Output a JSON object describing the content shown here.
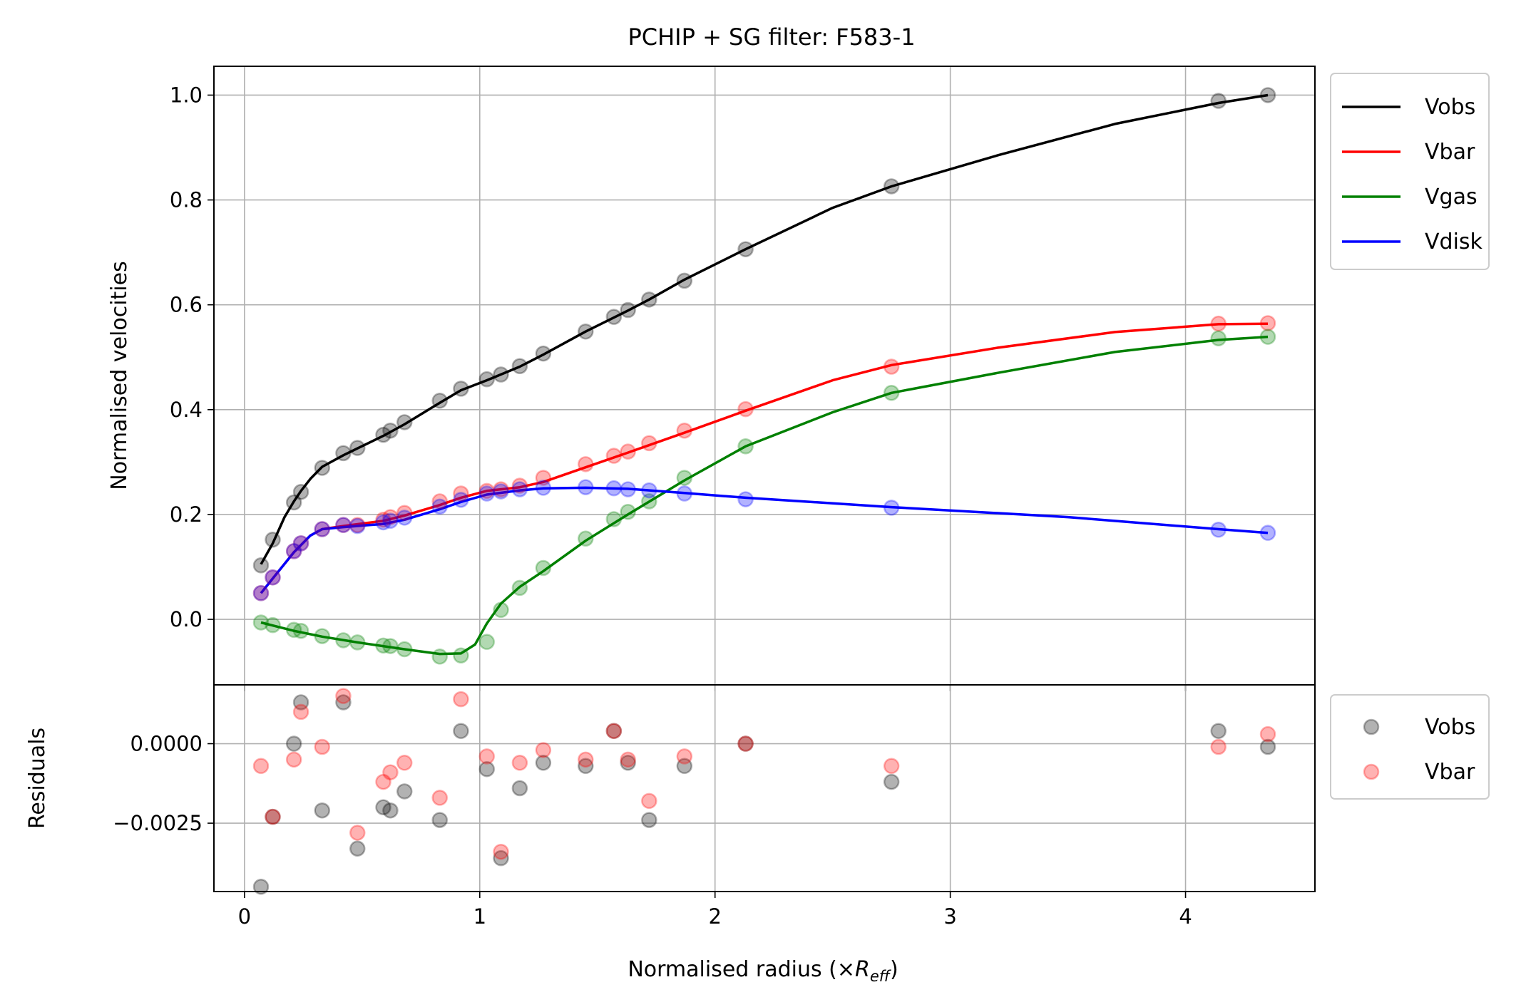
{
  "chart_data": [
    {
      "type": "line",
      "title": "PCHIP + SG filter: F583-1",
      "ylabel": "Normalised velocities",
      "xlim": [
        -0.13,
        4.55
      ],
      "ylim": [
        -0.125,
        1.055
      ],
      "xticks": [
        0,
        1,
        2,
        3,
        4
      ],
      "yticks": [
        0.0,
        0.2,
        0.4,
        0.6,
        0.8,
        1.0
      ],
      "ytick_labels": [
        "0.0",
        "0.2",
        "0.4",
        "0.6",
        "0.8",
        "1.0"
      ],
      "grid": true,
      "legend_position": "outside upper right",
      "x": [
        0.07,
        0.12,
        0.21,
        0.24,
        0.33,
        0.42,
        0.48,
        0.59,
        0.62,
        0.68,
        0.83,
        0.92,
        1.03,
        1.09,
        1.17,
        1.27,
        1.45,
        1.57,
        1.63,
        1.72,
        1.87,
        2.13,
        2.75,
        4.14,
        4.35
      ],
      "series": [
        {
          "name": "Vobs",
          "color": "#000000",
          "points": [
            0.103,
            0.152,
            0.223,
            0.243,
            0.289,
            0.317,
            0.327,
            0.352,
            0.36,
            0.376,
            0.417,
            0.44,
            0.458,
            0.467,
            0.483,
            0.507,
            0.549,
            0.577,
            0.59,
            0.61,
            0.646,
            0.706,
            0.826,
            0.989,
            1.0
          ],
          "curve_x": [
            0.07,
            0.12,
            0.17,
            0.21,
            0.24,
            0.28,
            0.33,
            0.42,
            0.48,
            0.59,
            0.68,
            0.83,
            0.92,
            1.03,
            1.17,
            1.27,
            1.45,
            1.63,
            1.72,
            1.87,
            2.13,
            2.5,
            2.75,
            3.2,
            3.7,
            4.14,
            4.35
          ],
          "curve_y": [
            0.105,
            0.145,
            0.195,
            0.225,
            0.245,
            0.268,
            0.291,
            0.313,
            0.326,
            0.35,
            0.372,
            0.413,
            0.437,
            0.456,
            0.482,
            0.505,
            0.549,
            0.589,
            0.61,
            0.648,
            0.706,
            0.785,
            0.826,
            0.885,
            0.945,
            0.985,
            1.0
          ]
        },
        {
          "name": "Vbar",
          "color": "#ff0000",
          "points": [
            0.05,
            0.08,
            0.13,
            0.145,
            0.172,
            0.18,
            0.18,
            0.19,
            0.195,
            0.203,
            0.225,
            0.24,
            0.245,
            0.248,
            0.255,
            0.27,
            0.296,
            0.312,
            0.32,
            0.336,
            0.36,
            0.401,
            0.482,
            0.564,
            0.565
          ],
          "curve_x": [
            0.07,
            0.12,
            0.21,
            0.28,
            0.33,
            0.42,
            0.59,
            0.68,
            0.83,
            0.92,
            1.03,
            1.17,
            1.27,
            1.45,
            1.63,
            1.87,
            2.13,
            2.5,
            2.75,
            3.2,
            3.7,
            4.14,
            4.35
          ],
          "curve_y": [
            0.05,
            0.078,
            0.128,
            0.16,
            0.172,
            0.178,
            0.188,
            0.198,
            0.218,
            0.232,
            0.245,
            0.252,
            0.262,
            0.29,
            0.318,
            0.356,
            0.398,
            0.456,
            0.485,
            0.518,
            0.548,
            0.563,
            0.564
          ]
        },
        {
          "name": "Vgas",
          "color": "#008000",
          "points": [
            -0.006,
            -0.011,
            -0.02,
            -0.022,
            -0.032,
            -0.04,
            -0.044,
            -0.05,
            -0.051,
            -0.057,
            -0.071,
            -0.069,
            -0.043,
            0.018,
            0.06,
            0.098,
            0.154,
            0.191,
            0.205,
            0.225,
            0.27,
            0.33,
            0.432,
            0.536,
            0.539
          ],
          "curve_x": [
            0.07,
            0.21,
            0.33,
            0.48,
            0.68,
            0.83,
            0.92,
            0.98,
            1.03,
            1.09,
            1.17,
            1.27,
            1.45,
            1.63,
            1.87,
            2.13,
            2.5,
            2.75,
            3.2,
            3.7,
            4.14,
            4.35
          ],
          "curve_y": [
            -0.006,
            -0.022,
            -0.033,
            -0.044,
            -0.057,
            -0.066,
            -0.065,
            -0.048,
            -0.008,
            0.03,
            0.062,
            0.092,
            0.15,
            0.2,
            0.265,
            0.33,
            0.395,
            0.432,
            0.47,
            0.51,
            0.533,
            0.539
          ]
        },
        {
          "name": "Vdisk",
          "color": "#0000ff",
          "points": [
            0.05,
            0.08,
            0.13,
            0.145,
            0.172,
            0.18,
            0.178,
            0.185,
            0.188,
            0.194,
            0.215,
            0.228,
            0.24,
            0.244,
            0.248,
            0.251,
            0.252,
            0.25,
            0.248,
            0.246,
            0.24,
            0.229,
            0.213,
            0.171,
            0.165
          ],
          "curve_x": [
            0.07,
            0.12,
            0.21,
            0.28,
            0.33,
            0.42,
            0.59,
            0.68,
            0.83,
            0.92,
            1.03,
            1.17,
            1.27,
            1.45,
            1.63,
            1.87,
            2.13,
            2.75,
            3.5,
            4.14,
            4.35
          ],
          "curve_y": [
            0.05,
            0.078,
            0.128,
            0.16,
            0.172,
            0.176,
            0.182,
            0.19,
            0.21,
            0.224,
            0.238,
            0.246,
            0.25,
            0.251,
            0.249,
            0.241,
            0.232,
            0.214,
            0.195,
            0.172,
            0.165
          ]
        }
      ]
    },
    {
      "type": "scatter",
      "xlabel_text": "Normalised radius (×",
      "xlabel_sym": "R",
      "xlabel_sub": "eff",
      "xlabel_close": ")",
      "ylabel": "Residuals",
      "xlim": [
        -0.13,
        4.55
      ],
      "ylim": [
        -0.00465,
        0.00185
      ],
      "xticks": [
        0,
        1,
        2,
        3,
        4
      ],
      "xtick_labels": [
        "0",
        "1",
        "2",
        "3",
        "4"
      ],
      "yticks": [
        0.0,
        -0.0025
      ],
      "ytick_labels": [
        "0.0000",
        "−0.0025"
      ],
      "grid": true,
      "legend_position": "outside upper right",
      "x": [
        0.07,
        0.12,
        0.21,
        0.24,
        0.33,
        0.42,
        0.48,
        0.59,
        0.62,
        0.68,
        0.83,
        0.92,
        1.03,
        1.09,
        1.17,
        1.27,
        1.45,
        1.57,
        1.63,
        1.72,
        1.87,
        2.13,
        2.75,
        4.14,
        4.35
      ],
      "series": [
        {
          "name": "Vobs",
          "color": "#000000",
          "values": [
            -0.0045,
            -0.0023,
            0.0,
            0.0013,
            -0.0021,
            0.0013,
            -0.0033,
            -0.002,
            -0.0021,
            -0.0015,
            -0.0024,
            0.0004,
            -0.0008,
            -0.0036,
            -0.0014,
            -0.0006,
            -0.0007,
            0.0004,
            -0.0006,
            -0.0024,
            -0.0007,
            0.0,
            -0.0012,
            0.0004,
            -0.0001
          ]
        },
        {
          "name": "Vbar",
          "color": "#ff0000",
          "values": [
            -0.0007,
            -0.0023,
            -0.0005,
            0.001,
            -0.0001,
            0.0015,
            -0.0028,
            -0.0012,
            -0.0009,
            -0.0006,
            -0.0017,
            0.0014,
            -0.0004,
            -0.0034,
            -0.0006,
            -0.0002,
            -0.0005,
            0.0004,
            -0.0005,
            -0.0018,
            -0.0004,
            0.0,
            -0.0007,
            -0.0001,
            0.0003
          ]
        }
      ]
    }
  ]
}
